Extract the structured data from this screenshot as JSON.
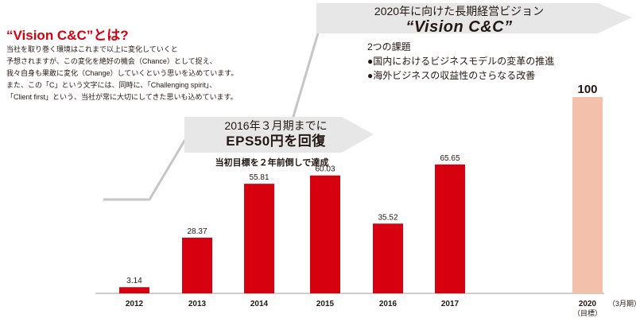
{
  "vision_section": {
    "title": "“Vision C&C”とは?",
    "body_lines": [
      "当社を取り巻く環境はこれまで以上に変化していくと",
      "予想されますが、この変化を絶好の機会（Chance）として捉え、",
      "我々自身も果敢に変化（Change）していくという思いを込めています。",
      "また、この「C」という文字には、同時に、「Challenging spirit」、",
      "「Client first」という、当社が常に大切にしてきた思いも込めています。"
    ]
  },
  "top_banner": {
    "line1": "2020年に向けた長期経営ビジョン",
    "line2": "“Vision C&C”"
  },
  "issues": {
    "heading": "2つの課題",
    "items": [
      "●国内におけるビジネスモデルの変革の推進",
      "●海外ビジネスの収益性のさらなる改善"
    ]
  },
  "mid_banner": {
    "line1": "2016年３月期までに",
    "line2": "EPS50円を回復",
    "subnote": "当初目標を２年前倒しで達成"
  },
  "colors": {
    "bar": "#d7000f",
    "target_bar": "#f3c1ab",
    "banner": "#e7e7e7",
    "axis": "#9e9e9e",
    "text": "#231815"
  },
  "chart_data": {
    "type": "bar",
    "categories": [
      "2012",
      "2013",
      "2014",
      "2015",
      "2016",
      "2017",
      "2020"
    ],
    "category_sublabels": [
      "",
      "",
      "",
      "",
      "",
      "",
      "（目標）"
    ],
    "values": [
      3.14,
      28.37,
      55.81,
      60.03,
      35.52,
      65.65,
      100
    ],
    "value_labels": [
      "3.14",
      "28.37",
      "55.81",
      "60.03",
      "35.52",
      "65.65",
      "100"
    ],
    "target_index": 6,
    "x_unit": "（3月期）",
    "title": "",
    "xlabel": "",
    "ylabel": "",
    "ylim": [
      0,
      100
    ],
    "grid": false,
    "legend": "none"
  }
}
